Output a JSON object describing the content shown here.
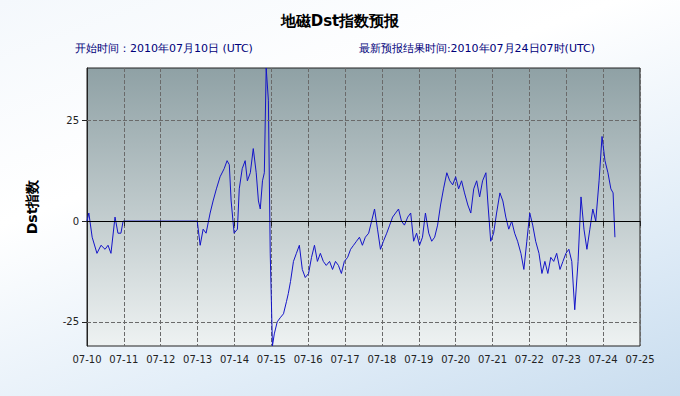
{
  "chart_data": {
    "type": "line",
    "title": "地磁Dst指数预报",
    "annotations": [
      "开始时间：2010年07月10日 (UTC)",
      "最新预报结果时间:2010年07月24日07时(UTC)"
    ],
    "ylabel": "Dst指数",
    "color": "#1414c8",
    "x": [
      0,
      0.05,
      0.14,
      0.27,
      0.38,
      0.49,
      0.57,
      0.65,
      0.76,
      0.84,
      0.92,
      0.98,
      2.99,
      3.07,
      3.15,
      3.23,
      3.34,
      3.42,
      3.51,
      3.61,
      3.72,
      3.8,
      3.86,
      3.91,
      3.99,
      4.08,
      4.13,
      4.21,
      4.29,
      4.35,
      4.43,
      4.51,
      4.59,
      4.65,
      4.7,
      4.76,
      4.81,
      4.86,
      4.92,
      4.97,
      5.03,
      5.08,
      5.16,
      5.24,
      5.33,
      5.41,
      5.46,
      5.52,
      5.6,
      5.68,
      5.76,
      5.84,
      5.92,
      6.01,
      6.09,
      6.17,
      6.25,
      6.33,
      6.41,
      6.49,
      6.58,
      6.66,
      6.74,
      6.82,
      6.9,
      6.98,
      7.07,
      7.15,
      7.23,
      7.31,
      7.39,
      7.47,
      7.55,
      7.64,
      7.72,
      7.8,
      7.88,
      7.96,
      8.04,
      8.13,
      8.21,
      8.29,
      8.37,
      8.45,
      8.53,
      8.61,
      8.7,
      8.78,
      8.86,
      8.94,
      9.02,
      9.1,
      9.18,
      9.27,
      9.35,
      9.43,
      9.51,
      9.59,
      9.67,
      9.76,
      9.84,
      9.92,
      10.0,
      10.08,
      10.16,
      10.24,
      10.33,
      10.41,
      10.49,
      10.57,
      10.65,
      10.73,
      10.82,
      10.87,
      10.95,
      11.03,
      11.11,
      11.2,
      11.28,
      11.36,
      11.44,
      11.52,
      11.6,
      11.68,
      11.77,
      11.85,
      11.93,
      12.01,
      12.09,
      12.17,
      12.26,
      12.34,
      12.42,
      12.5,
      12.58,
      12.66,
      12.74,
      12.83,
      12.91,
      12.99,
      13.07,
      13.15,
      13.23,
      13.32,
      13.4,
      13.48,
      13.56,
      13.64,
      13.72,
      13.8,
      13.89,
      13.97,
      14.05,
      14.13,
      14.21,
      14.27,
      14.32
    ],
    "values": [
      0,
      2,
      -4,
      -8,
      -6,
      -7,
      -6,
      -8,
      1,
      -3,
      -3,
      0,
      0,
      -6,
      -2,
      -3,
      2,
      5,
      8,
      11,
      13,
      15,
      14,
      5,
      -3,
      -2,
      8,
      13,
      15,
      10,
      12,
      18,
      12,
      5,
      3,
      10,
      12,
      38,
      30,
      -8,
      -31,
      -28,
      -25,
      -24,
      -23,
      -20,
      -18,
      -15,
      -10,
      -8,
      -6,
      -12,
      -14,
      -13,
      -9,
      -6,
      -10,
      -8,
      -10,
      -11,
      -10,
      -12,
      -10,
      -11,
      -13,
      -10,
      -9,
      -7,
      -6,
      -5,
      -4,
      -6,
      -4,
      -3,
      0,
      3,
      -2,
      -7,
      -5,
      -3,
      -1,
      1,
      2,
      3,
      0,
      -1,
      1,
      2,
      -5,
      -3,
      -6,
      -4,
      2,
      -3,
      -5,
      -4,
      -1,
      4,
      8,
      12,
      10,
      9,
      11,
      8,
      10,
      7,
      4,
      2,
      8,
      10,
      6,
      10,
      12,
      5,
      -5,
      -3,
      2,
      7,
      5,
      1,
      -2,
      0,
      -3,
      -5,
      -8,
      -12,
      -5,
      2,
      -1,
      -5,
      -8,
      -13,
      -10,
      -13,
      -9,
      -10,
      -8,
      -12,
      -10,
      -8,
      -7,
      -10,
      -22,
      -10,
      6,
      -2,
      -7,
      -2,
      3,
      0,
      10,
      21,
      15,
      12,
      8,
      7,
      -4
    ],
    "xlim": [
      0,
      15
    ],
    "xticks": [
      {
        "value": 0,
        "label": "07-10"
      },
      {
        "value": 1,
        "label": "07-11"
      },
      {
        "value": 2,
        "label": "07-12"
      },
      {
        "value": 3,
        "label": "07-13"
      },
      {
        "value": 4,
        "label": "07-14"
      },
      {
        "value": 5,
        "label": "07-15"
      },
      {
        "value": 6,
        "label": "07-16"
      },
      {
        "value": 7,
        "label": "07-17"
      },
      {
        "value": 8,
        "label": "07-18"
      },
      {
        "value": 9,
        "label": "07-19"
      },
      {
        "value": 10,
        "label": "07-20"
      },
      {
        "value": 11,
        "label": "07-21"
      },
      {
        "value": 12,
        "label": "07-22"
      },
      {
        "value": 13,
        "label": "07-23"
      },
      {
        "value": 14,
        "label": "07-24"
      },
      {
        "value": 15,
        "label": "07-25"
      }
    ],
    "ylim": [
      -31,
      38
    ],
    "yticks": [
      -25,
      0,
      25
    ],
    "grid": true
  }
}
